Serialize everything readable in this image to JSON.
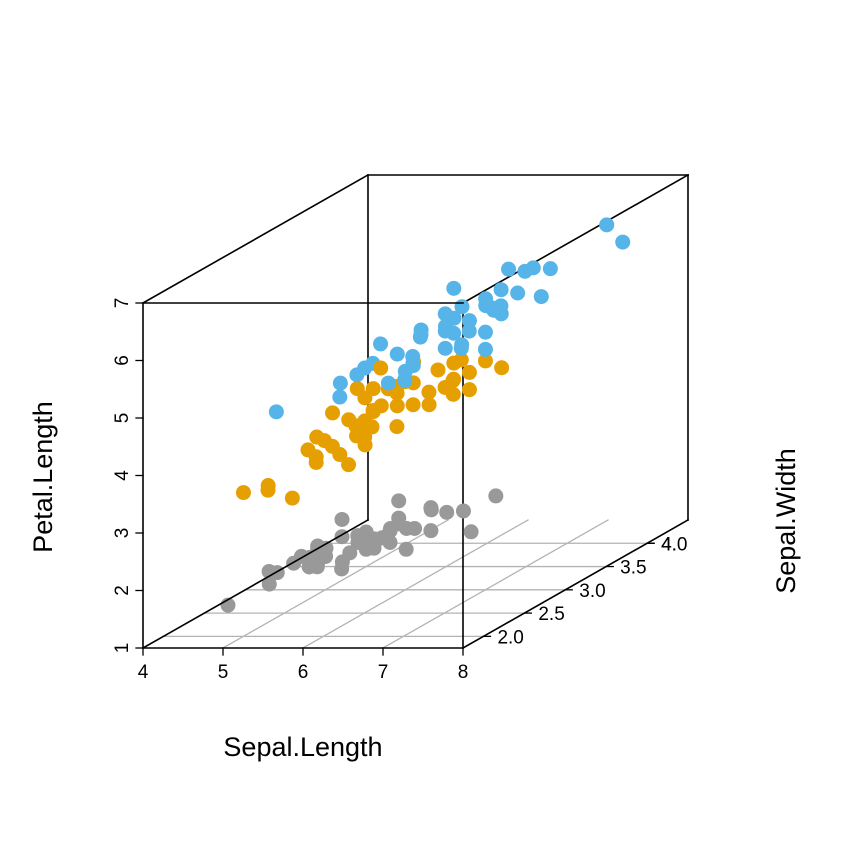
{
  "chart_data": {
    "type": "scatter",
    "projection": "3d",
    "xlabel": "Sepal.Length",
    "ylabel": "Sepal.Width",
    "zlabel": "Petal.Length",
    "xlim": [
      4,
      8
    ],
    "ylim": [
      1.75,
      4.5
    ],
    "zlim": [
      1,
      7
    ],
    "x_ticks": [
      "4",
      "5",
      "6",
      "7",
      "8"
    ],
    "y_ticks": [
      "2.0",
      "2.5",
      "3.0",
      "3.5",
      "4.0",
      "4."
    ],
    "z_ticks": [
      "1",
      "2",
      "3",
      "4",
      "5",
      "6",
      "7"
    ],
    "grid": "bottom-face",
    "colors": {
      "setosa": "#999999",
      "versicolor": "#E69F00",
      "virginica": "#56B4E9"
    },
    "series": [
      {
        "color_key": "setosa",
        "points": [
          [
            5.1,
            3.5,
            1.4
          ],
          [
            4.9,
            3.0,
            1.4
          ],
          [
            4.7,
            3.2,
            1.3
          ],
          [
            4.6,
            3.1,
            1.5
          ],
          [
            5.0,
            3.6,
            1.4
          ],
          [
            5.4,
            3.9,
            1.7
          ],
          [
            4.6,
            3.4,
            1.4
          ],
          [
            5.0,
            3.4,
            1.5
          ],
          [
            4.4,
            2.9,
            1.4
          ],
          [
            4.9,
            3.1,
            1.5
          ],
          [
            5.4,
            3.7,
            1.5
          ],
          [
            4.8,
            3.4,
            1.6
          ],
          [
            4.8,
            3.0,
            1.4
          ],
          [
            4.3,
            3.0,
            1.1
          ],
          [
            5.8,
            4.0,
            1.2
          ],
          [
            5.7,
            4.4,
            1.5
          ],
          [
            5.4,
            3.9,
            1.3
          ],
          [
            5.1,
            3.5,
            1.4
          ],
          [
            5.7,
            3.8,
            1.7
          ],
          [
            5.1,
            3.8,
            1.5
          ],
          [
            5.4,
            3.4,
            1.7
          ],
          [
            5.1,
            3.7,
            1.5
          ],
          [
            4.6,
            3.6,
            1.0
          ],
          [
            5.1,
            3.3,
            1.7
          ],
          [
            4.8,
            3.4,
            1.9
          ],
          [
            5.0,
            3.0,
            1.6
          ],
          [
            5.0,
            3.4,
            1.6
          ],
          [
            5.2,
            3.5,
            1.5
          ],
          [
            5.2,
            3.4,
            1.4
          ],
          [
            4.7,
            3.2,
            1.6
          ],
          [
            4.8,
            3.1,
            1.6
          ],
          [
            5.4,
            3.4,
            1.5
          ],
          [
            5.2,
            4.1,
            1.5
          ],
          [
            5.5,
            4.2,
            1.4
          ],
          [
            4.9,
            3.1,
            1.5
          ],
          [
            5.0,
            3.2,
            1.2
          ],
          [
            5.5,
            3.5,
            1.3
          ],
          [
            4.4,
            3.0,
            1.3
          ],
          [
            5.1,
            3.4,
            1.5
          ],
          [
            5.0,
            3.5,
            1.3
          ],
          [
            4.5,
            2.3,
            1.3
          ],
          [
            4.4,
            3.2,
            1.3
          ],
          [
            5.0,
            3.5,
            1.6
          ],
          [
            5.1,
            3.8,
            1.9
          ],
          [
            4.8,
            3.0,
            1.4
          ],
          [
            5.1,
            3.8,
            1.6
          ],
          [
            4.6,
            3.2,
            1.4
          ],
          [
            5.3,
            3.7,
            1.5
          ],
          [
            5.0,
            3.3,
            1.4
          ]
        ]
      },
      {
        "color_key": "versicolor",
        "points": [
          [
            7.0,
            3.2,
            4.7
          ],
          [
            6.4,
            3.2,
            4.5
          ],
          [
            6.9,
            3.1,
            4.9
          ],
          [
            5.5,
            2.3,
            4.0
          ],
          [
            6.5,
            2.8,
            4.6
          ],
          [
            5.7,
            2.8,
            4.5
          ],
          [
            6.3,
            3.3,
            4.7
          ],
          [
            4.9,
            2.4,
            3.3
          ],
          [
            6.6,
            2.9,
            4.6
          ],
          [
            5.2,
            2.7,
            3.9
          ],
          [
            5.0,
            2.0,
            3.5
          ],
          [
            5.9,
            3.0,
            4.2
          ],
          [
            6.0,
            2.2,
            4.0
          ],
          [
            6.1,
            2.9,
            4.7
          ],
          [
            5.6,
            2.9,
            3.6
          ],
          [
            6.7,
            3.1,
            4.4
          ],
          [
            5.6,
            3.0,
            4.5
          ],
          [
            5.8,
            2.7,
            4.1
          ],
          [
            6.2,
            2.2,
            4.5
          ],
          [
            5.6,
            2.5,
            3.9
          ],
          [
            5.9,
            3.2,
            4.8
          ],
          [
            6.1,
            2.8,
            4.0
          ],
          [
            6.3,
            2.5,
            4.9
          ],
          [
            6.1,
            2.8,
            4.7
          ],
          [
            6.4,
            2.9,
            4.3
          ],
          [
            6.6,
            3.0,
            4.4
          ],
          [
            6.8,
            2.8,
            4.8
          ],
          [
            6.7,
            3.0,
            5.0
          ],
          [
            6.0,
            2.9,
            4.5
          ],
          [
            5.7,
            2.6,
            3.5
          ],
          [
            5.5,
            2.4,
            3.8
          ],
          [
            5.5,
            2.4,
            3.7
          ],
          [
            5.8,
            2.7,
            3.9
          ],
          [
            6.0,
            2.7,
            5.1
          ],
          [
            5.4,
            3.0,
            4.5
          ],
          [
            6.0,
            3.4,
            4.5
          ],
          [
            6.7,
            3.1,
            4.7
          ],
          [
            6.3,
            2.3,
            4.4
          ],
          [
            5.6,
            3.0,
            4.1
          ],
          [
            5.5,
            2.5,
            4.0
          ],
          [
            5.5,
            2.6,
            4.4
          ],
          [
            6.1,
            3.0,
            4.6
          ],
          [
            5.8,
            2.6,
            4.0
          ],
          [
            5.0,
            2.3,
            3.3
          ],
          [
            5.6,
            2.7,
            4.2
          ],
          [
            5.7,
            3.0,
            4.2
          ],
          [
            5.7,
            2.9,
            4.2
          ],
          [
            6.2,
            2.9,
            4.3
          ],
          [
            5.1,
            2.5,
            3.0
          ],
          [
            5.7,
            2.8,
            4.1
          ]
        ]
      },
      {
        "color_key": "virginica",
        "points": [
          [
            6.3,
            3.3,
            6.0
          ],
          [
            5.8,
            2.7,
            5.1
          ],
          [
            7.1,
            3.0,
            5.9
          ],
          [
            6.3,
            2.9,
            5.6
          ],
          [
            6.5,
            3.0,
            5.8
          ],
          [
            7.6,
            3.0,
            6.6
          ],
          [
            4.9,
            2.5,
            4.5
          ],
          [
            7.3,
            2.9,
            6.3
          ],
          [
            6.7,
            2.5,
            5.8
          ],
          [
            7.2,
            3.6,
            6.1
          ],
          [
            6.5,
            3.2,
            5.1
          ],
          [
            6.4,
            2.7,
            5.3
          ],
          [
            6.8,
            3.0,
            5.5
          ],
          [
            5.7,
            2.5,
            5.0
          ],
          [
            5.8,
            2.8,
            5.1
          ],
          [
            6.4,
            3.2,
            5.3
          ],
          [
            6.5,
            3.0,
            5.5
          ],
          [
            7.7,
            3.8,
            6.7
          ],
          [
            7.7,
            2.6,
            6.9
          ],
          [
            6.0,
            2.2,
            5.0
          ],
          [
            6.9,
            3.2,
            5.7
          ],
          [
            5.6,
            2.8,
            4.9
          ],
          [
            7.7,
            2.8,
            6.7
          ],
          [
            6.3,
            2.7,
            4.9
          ],
          [
            6.7,
            3.3,
            5.7
          ],
          [
            7.2,
            3.2,
            6.0
          ],
          [
            6.2,
            2.8,
            4.8
          ],
          [
            6.1,
            3.0,
            4.9
          ],
          [
            6.4,
            2.8,
            5.6
          ],
          [
            7.2,
            3.0,
            5.8
          ],
          [
            7.4,
            2.8,
            6.1
          ],
          [
            7.9,
            3.8,
            6.4
          ],
          [
            6.4,
            2.8,
            5.6
          ],
          [
            6.3,
            2.8,
            5.1
          ],
          [
            6.1,
            2.6,
            5.6
          ],
          [
            7.7,
            3.0,
            6.1
          ],
          [
            6.3,
            3.4,
            5.6
          ],
          [
            6.4,
            3.1,
            5.5
          ],
          [
            6.0,
            3.0,
            4.8
          ],
          [
            6.9,
            3.1,
            5.4
          ],
          [
            6.7,
            3.1,
            5.6
          ],
          [
            6.9,
            3.1,
            5.1
          ],
          [
            6.8,
            3.2,
            5.9
          ],
          [
            6.7,
            3.3,
            5.7
          ],
          [
            6.7,
            3.0,
            5.2
          ],
          [
            6.3,
            2.5,
            5.0
          ],
          [
            6.5,
            3.0,
            5.2
          ],
          [
            6.2,
            3.4,
            5.4
          ],
          [
            5.9,
            3.0,
            5.1
          ]
        ]
      }
    ]
  }
}
